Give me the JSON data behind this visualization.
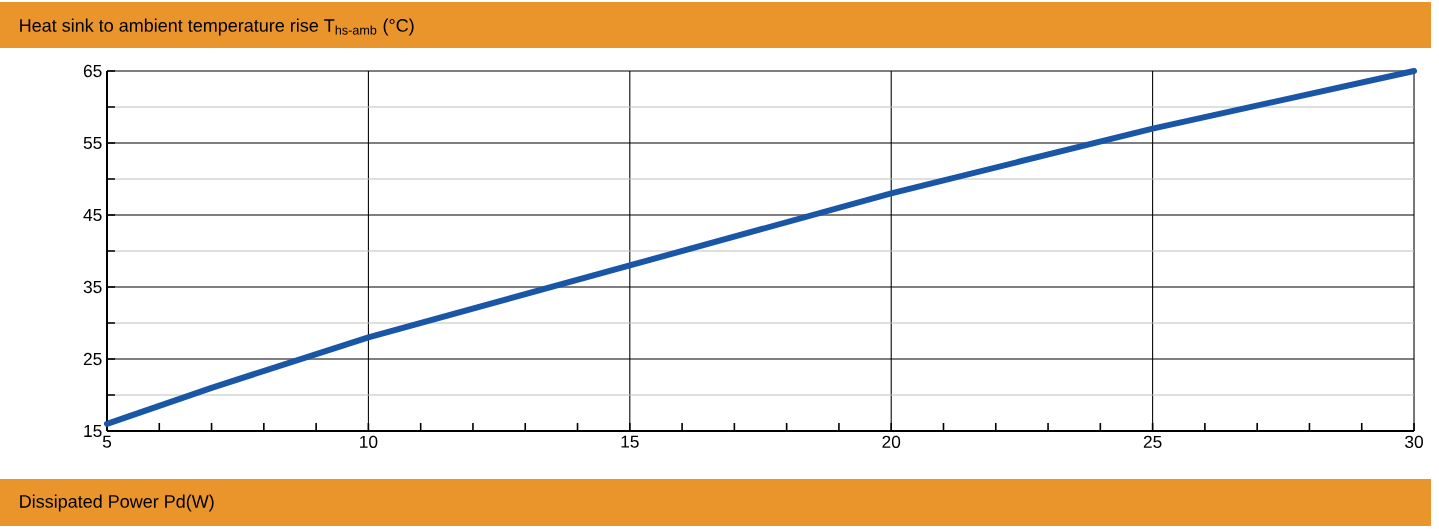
{
  "chart_data": {
    "type": "line",
    "ylabel": "Heat sink to ambient temperature rise T$_{hs-amb}$ (°C)",
    "xlabel": "Dissipated Power Pd(W)",
    "xlim": [
      5,
      30
    ],
    "xticks": [
      5,
      10,
      15,
      20,
      25,
      30
    ],
    "ylim": [
      15,
      65
    ],
    "yticks": [
      15,
      25,
      35,
      45,
      55,
      65
    ],
    "grid": true,
    "series": [
      {
        "color": "#1a56a6",
        "x": [
          5,
          7,
          10,
          15,
          20,
          25,
          30
        ],
        "values": [
          16,
          21,
          28,
          38,
          48,
          57,
          65
        ]
      }
    ]
  }
}
